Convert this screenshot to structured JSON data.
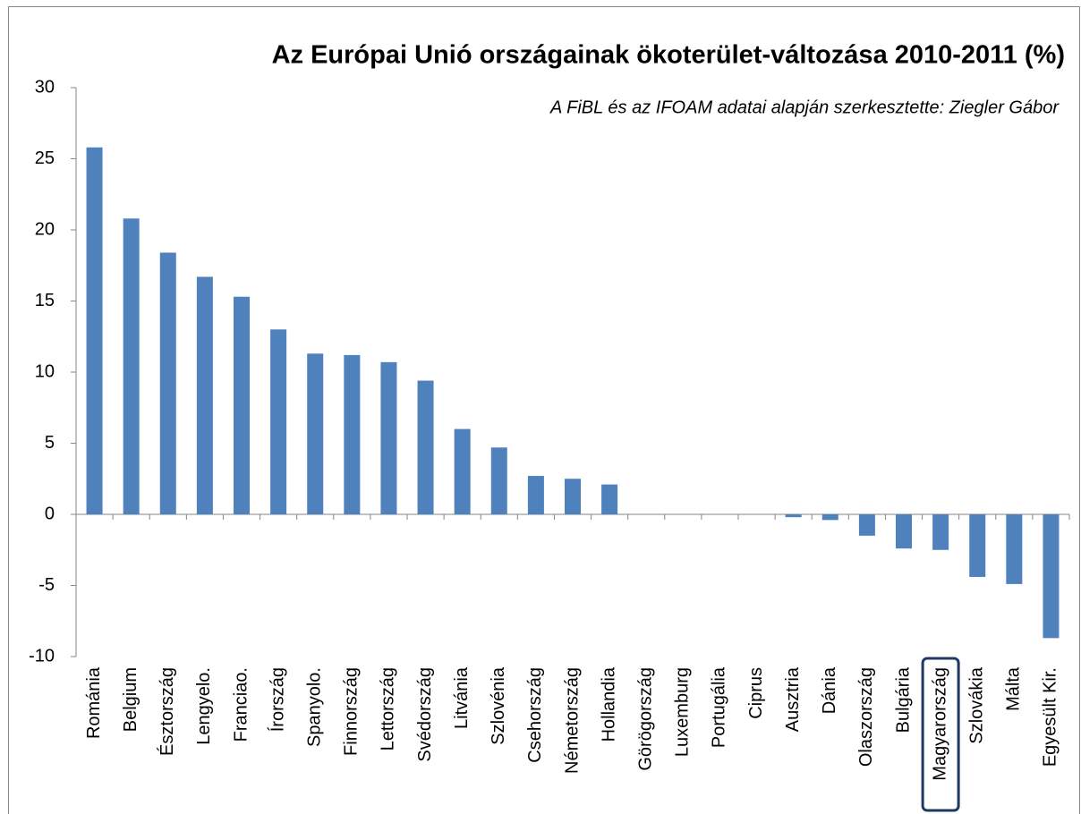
{
  "chart_data": {
    "type": "bar",
    "title": "Az Európai Unió országainak ökoterület-változása 2010-2011 (%)",
    "subtitle": "A FiBL és az IFOAM adatai alapján szerkesztette: Ziegler Gábor",
    "categories": [
      "Románia",
      "Belgium",
      "Észtország",
      "Lengyelo.",
      "Franciao.",
      "Írország",
      "Spanyolo.",
      "Finnország",
      "Lettország",
      "Svédország",
      "Litvánia",
      "Szlovénia",
      "Csehország",
      "Németország",
      "Hollandia",
      "Görögország",
      "Luxemburg",
      "Portugália",
      "Ciprus",
      "Ausztria",
      "Dánia",
      "Olaszország",
      "Bulgária",
      "Magyarország",
      "Szlovákia",
      "Málta",
      "Egyesült Kir."
    ],
    "values": [
      25.8,
      20.8,
      18.4,
      16.7,
      15.3,
      13.0,
      11.3,
      11.2,
      10.7,
      9.4,
      6.0,
      4.7,
      2.7,
      2.5,
      2.1,
      0,
      0,
      0,
      0,
      -0.2,
      -0.4,
      -1.5,
      -2.4,
      -2.5,
      -4.4,
      -4.9,
      -8.7
    ],
    "color": "#4f81bd",
    "ylim": [
      -10,
      30
    ],
    "yticks": [
      -10,
      -5,
      0,
      5,
      10,
      15,
      20,
      25,
      30
    ],
    "grid": false,
    "highlighted_category": "Magyarország"
  }
}
